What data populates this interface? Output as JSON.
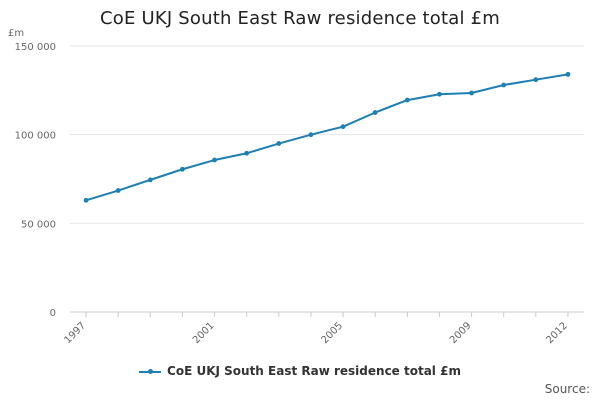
{
  "chart_data": {
    "type": "line",
    "title": "CoE UKJ South East Raw residence total £m",
    "ylabel": "£m",
    "xlabel": "",
    "x": [
      1997,
      1998,
      1999,
      2000,
      2001,
      2002,
      2003,
      2004,
      2005,
      2006,
      2007,
      2008,
      2009,
      2010,
      2011,
      2012
    ],
    "x_tick_labels": [
      "1997",
      "2001",
      "2005",
      "2009",
      "2012"
    ],
    "x_ticks": [
      1997,
      2001,
      2005,
      2009,
      2012
    ],
    "y_tick_labels": [
      "0",
      "50 000",
      "100 000",
      "150 000"
    ],
    "y_ticks": [
      0,
      50000,
      100000,
      150000
    ],
    "ylim": [
      0,
      150000
    ],
    "xlim": [
      1996.5,
      2012.5
    ],
    "grid": true,
    "legend_position": "bottom",
    "series": [
      {
        "name": "CoE UKJ South East Raw residence total £m",
        "color": "#1d7fb3",
        "values": [
          63000,
          68500,
          74500,
          80500,
          85700,
          89500,
          95000,
          100000,
          104500,
          112500,
          119500,
          122800,
          123500,
          128000,
          131000,
          134000
        ]
      }
    ]
  },
  "footer": {
    "source": "Source:"
  }
}
